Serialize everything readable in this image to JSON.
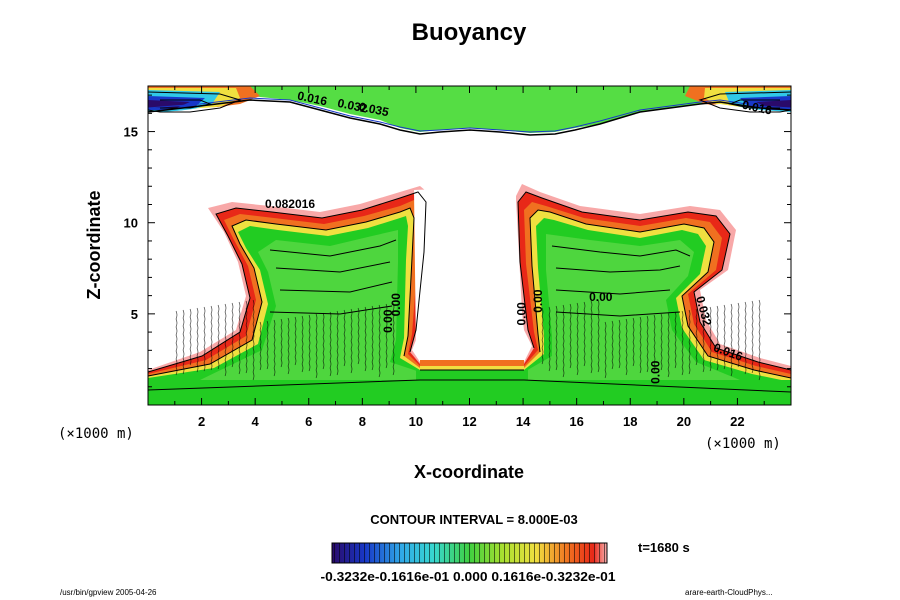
{
  "chart_data": {
    "type": "contour",
    "title": "Buoyancy",
    "xlabel": "X-coordinate",
    "ylabel": "Z-coordinate",
    "x_unit": "(×1000 m)",
    "z_unit": "(×1000 m)",
    "xlim": [
      0,
      24
    ],
    "ylim": [
      0,
      17.5
    ],
    "x_ticks": [
      2,
      4,
      6,
      8,
      10,
      12,
      14,
      16,
      18,
      20,
      22
    ],
    "y_ticks": [
      5,
      10,
      15
    ],
    "contour_interval_text": "CONTOUR INTERVAL = 8.000E-03",
    "time_text": "t=1680 s",
    "colorbar_labels": "-0.3232e-0.1616e-01 0.000 0.1616e-0.3232e-01",
    "colorbar_range": [
      -0.03232,
      0.03232
    ],
    "contour_labels": [
      {
        "text": "0.016",
        "x": 6.1,
        "z": 16.6
      },
      {
        "text": "0.032",
        "x": 7.6,
        "z": 16.2
      },
      {
        "text": "0.035",
        "x": 8.4,
        "z": 16.0
      },
      {
        "text": "0.016",
        "x": 22.7,
        "z": 16.1
      },
      {
        "text": "0.082016",
        "x": 5.3,
        "z": 10.8
      },
      {
        "text": "0.00",
        "x": 9.1,
        "z": 4.6
      },
      {
        "text": "0.00",
        "x": 9.4,
        "z": 5.5
      },
      {
        "text": "0.00",
        "x": 14.7,
        "z": 5.7
      },
      {
        "text": "0.00",
        "x": 14.1,
        "z": 5.0
      },
      {
        "text": "0.00",
        "x": 16.9,
        "z": 5.7
      },
      {
        "text": "0.032",
        "x": 20.6,
        "z": 5.1
      },
      {
        "text": "0.016",
        "x": 21.6,
        "z": 2.7
      },
      {
        "text": "0.00",
        "x": 19.1,
        "z": 1.8
      }
    ]
  },
  "footer": {
    "left": "/usr/bin/gpview 2005-04-26",
    "right": "arare-earth-CloudPhys..."
  },
  "colors": {
    "green": "#22cc22",
    "light_green": "#55dd44",
    "yellow": "#f0e040",
    "orange": "#f07020",
    "red": "#e82818",
    "pink": "#f8a8a8",
    "blue": "#1838c8",
    "cyan": "#30c8e8"
  }
}
